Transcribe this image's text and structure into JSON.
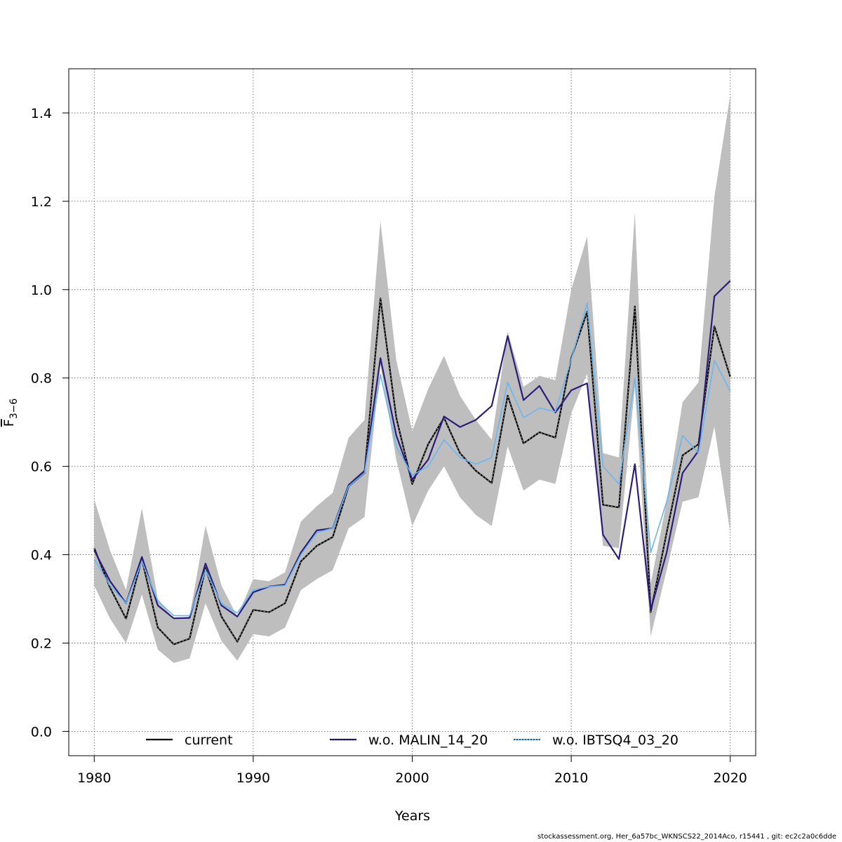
{
  "chart_data": {
    "type": "line",
    "xlabel": "Years",
    "ylabel_main": "F",
    "ylabel_sub": "3−6",
    "xlim": [
      1978.4,
      2021.6
    ],
    "ylim": [
      -0.055,
      1.5
    ],
    "xticks": [
      1980,
      1990,
      2000,
      2010,
      2020
    ],
    "xtick_labels": [
      "1980",
      "1990",
      "2000",
      "2010",
      "2020"
    ],
    "yticks": [
      0.0,
      0.2,
      0.4,
      0.6,
      0.8,
      1.0,
      1.2,
      1.4
    ],
    "ytick_labels": [
      "0.0",
      "0.2",
      "0.4",
      "0.6",
      "0.8",
      "1.0",
      "1.2",
      "1.4"
    ],
    "grid": true,
    "legend_position": "bottom",
    "x": [
      1980,
      1981,
      1982,
      1983,
      1984,
      1985,
      1986,
      1987,
      1988,
      1989,
      1990,
      1991,
      1992,
      1993,
      1994,
      1995,
      1996,
      1997,
      1998,
      1999,
      2000,
      2001,
      2002,
      2003,
      2004,
      2005,
      2006,
      2007,
      2008,
      2009,
      2010,
      2011,
      2012,
      2013,
      2014,
      2015,
      2016,
      2017,
      2018,
      2019,
      2020
    ],
    "band": {
      "color": "#bebebe",
      "upper": [
        0.525,
        0.41,
        0.32,
        0.505,
        0.3,
        0.255,
        0.26,
        0.465,
        0.33,
        0.26,
        0.345,
        0.34,
        0.36,
        0.475,
        0.51,
        0.54,
        0.665,
        0.705,
        1.155,
        0.84,
        0.68,
        0.775,
        0.85,
        0.76,
        0.705,
        0.66,
        0.905,
        0.78,
        0.805,
        0.795,
        1.0,
        1.12,
        0.63,
        0.62,
        1.175,
        0.335,
        0.52,
        0.745,
        0.79,
        1.21,
        1.44
      ],
      "lower": [
        0.33,
        0.255,
        0.2,
        0.31,
        0.185,
        0.155,
        0.165,
        0.29,
        0.205,
        0.16,
        0.22,
        0.215,
        0.235,
        0.32,
        0.345,
        0.365,
        0.46,
        0.485,
        0.83,
        0.615,
        0.465,
        0.545,
        0.6,
        0.53,
        0.49,
        0.465,
        0.645,
        0.545,
        0.57,
        0.56,
        0.72,
        0.81,
        0.42,
        0.415,
        0.78,
        0.215,
        0.365,
        0.52,
        0.53,
        0.69,
        0.45
      ]
    },
    "series": [
      {
        "name": "current",
        "color": "#000000",
        "dash": "",
        "values": [
          0.415,
          0.325,
          0.255,
          0.39,
          0.235,
          0.197,
          0.21,
          0.37,
          0.26,
          0.203,
          0.275,
          0.27,
          0.29,
          0.385,
          0.42,
          0.44,
          0.555,
          0.585,
          0.98,
          0.71,
          0.56,
          0.65,
          0.71,
          0.63,
          0.59,
          0.562,
          0.76,
          0.652,
          0.677,
          0.665,
          0.845,
          0.95,
          0.513,
          0.507,
          0.962,
          0.27,
          0.45,
          0.625,
          0.65,
          0.917,
          0.803
        ]
      },
      {
        "name": "w.o. MALIN_14_20",
        "color": "#2b1e7c",
        "dash": "",
        "values": [
          0.41,
          0.34,
          0.29,
          0.395,
          0.285,
          0.256,
          0.257,
          0.38,
          0.285,
          0.26,
          0.315,
          0.328,
          0.332,
          0.405,
          0.455,
          0.46,
          0.558,
          0.59,
          0.845,
          0.67,
          0.57,
          0.615,
          0.713,
          0.689,
          0.705,
          0.737,
          0.895,
          0.75,
          0.782,
          0.722,
          0.772,
          0.788,
          0.445,
          0.39,
          0.605,
          0.275,
          0.405,
          0.585,
          0.635,
          0.985,
          1.02
        ]
      },
      {
        "name": "w.o. IBTSQ4_03_20",
        "color": "#6ab7f0",
        "dash": "",
        "values": [
          0.39,
          0.33,
          0.29,
          0.385,
          0.295,
          0.262,
          0.262,
          0.365,
          0.29,
          0.268,
          0.32,
          0.328,
          0.33,
          0.4,
          0.45,
          0.46,
          0.555,
          0.585,
          0.808,
          0.645,
          0.58,
          0.6,
          0.66,
          0.62,
          0.605,
          0.62,
          0.79,
          0.71,
          0.732,
          0.724,
          0.842,
          0.97,
          0.6,
          0.56,
          0.8,
          0.405,
          0.52,
          0.67,
          0.63,
          0.84,
          0.77
        ]
      }
    ]
  },
  "footer": "stockassessment.org, Her_6a57bc_WKNSCS22_2014Aco, r15441 , git: ec2c2a0c6dde"
}
